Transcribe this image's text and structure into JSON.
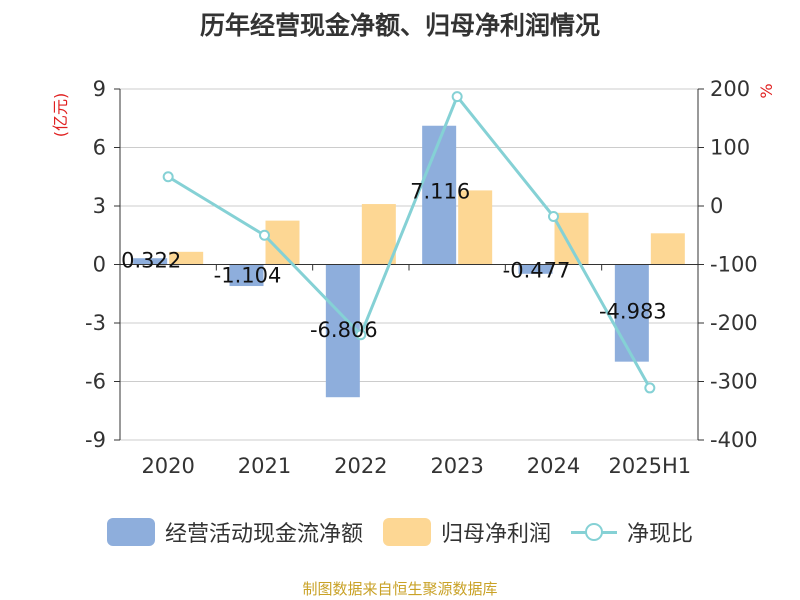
{
  "chart_data": {
    "type": "bar",
    "title": "历年经营现金净额、归母净利润情况",
    "categories": [
      "2020",
      "2021",
      "2022",
      "2023",
      "2024",
      "2025H1"
    ],
    "left_axis": {
      "unit": "(亿元)",
      "ylim": [
        -9,
        9
      ],
      "ticks": [
        "9",
        "6",
        "3",
        "0",
        "-3",
        "-6",
        "-9"
      ]
    },
    "right_axis": {
      "unit": "%",
      "ylim": [
        -400,
        200
      ],
      "ticks": [
        "200",
        "100",
        "0",
        "-100",
        "-200",
        "-300",
        "-400"
      ]
    },
    "series": [
      {
        "name": "经营活动现金流净额",
        "kind": "bar",
        "axis": "left",
        "color": "#8eaedc",
        "values": [
          0.322,
          -1.104,
          -6.806,
          7.116,
          -0.477,
          -4.983
        ],
        "labels": [
          "0.322",
          "-1.104",
          "-6.806",
          "7.116",
          "-0.477",
          "-4.983"
        ]
      },
      {
        "name": "归母净利润",
        "kind": "bar",
        "axis": "left",
        "color": "#fdd794",
        "values": [
          0.65,
          2.25,
          3.1,
          3.8,
          2.65,
          1.6
        ]
      },
      {
        "name": "净现比",
        "kind": "line",
        "axis": "right",
        "color": "#85d1d5",
        "values": [
          50,
          -50,
          -220,
          187,
          -18,
          -311
        ]
      }
    ],
    "grid": true,
    "legend_position": "bottom"
  },
  "source_text": "制图数据来自恒生聚源数据库",
  "source_color": "#c9a227"
}
